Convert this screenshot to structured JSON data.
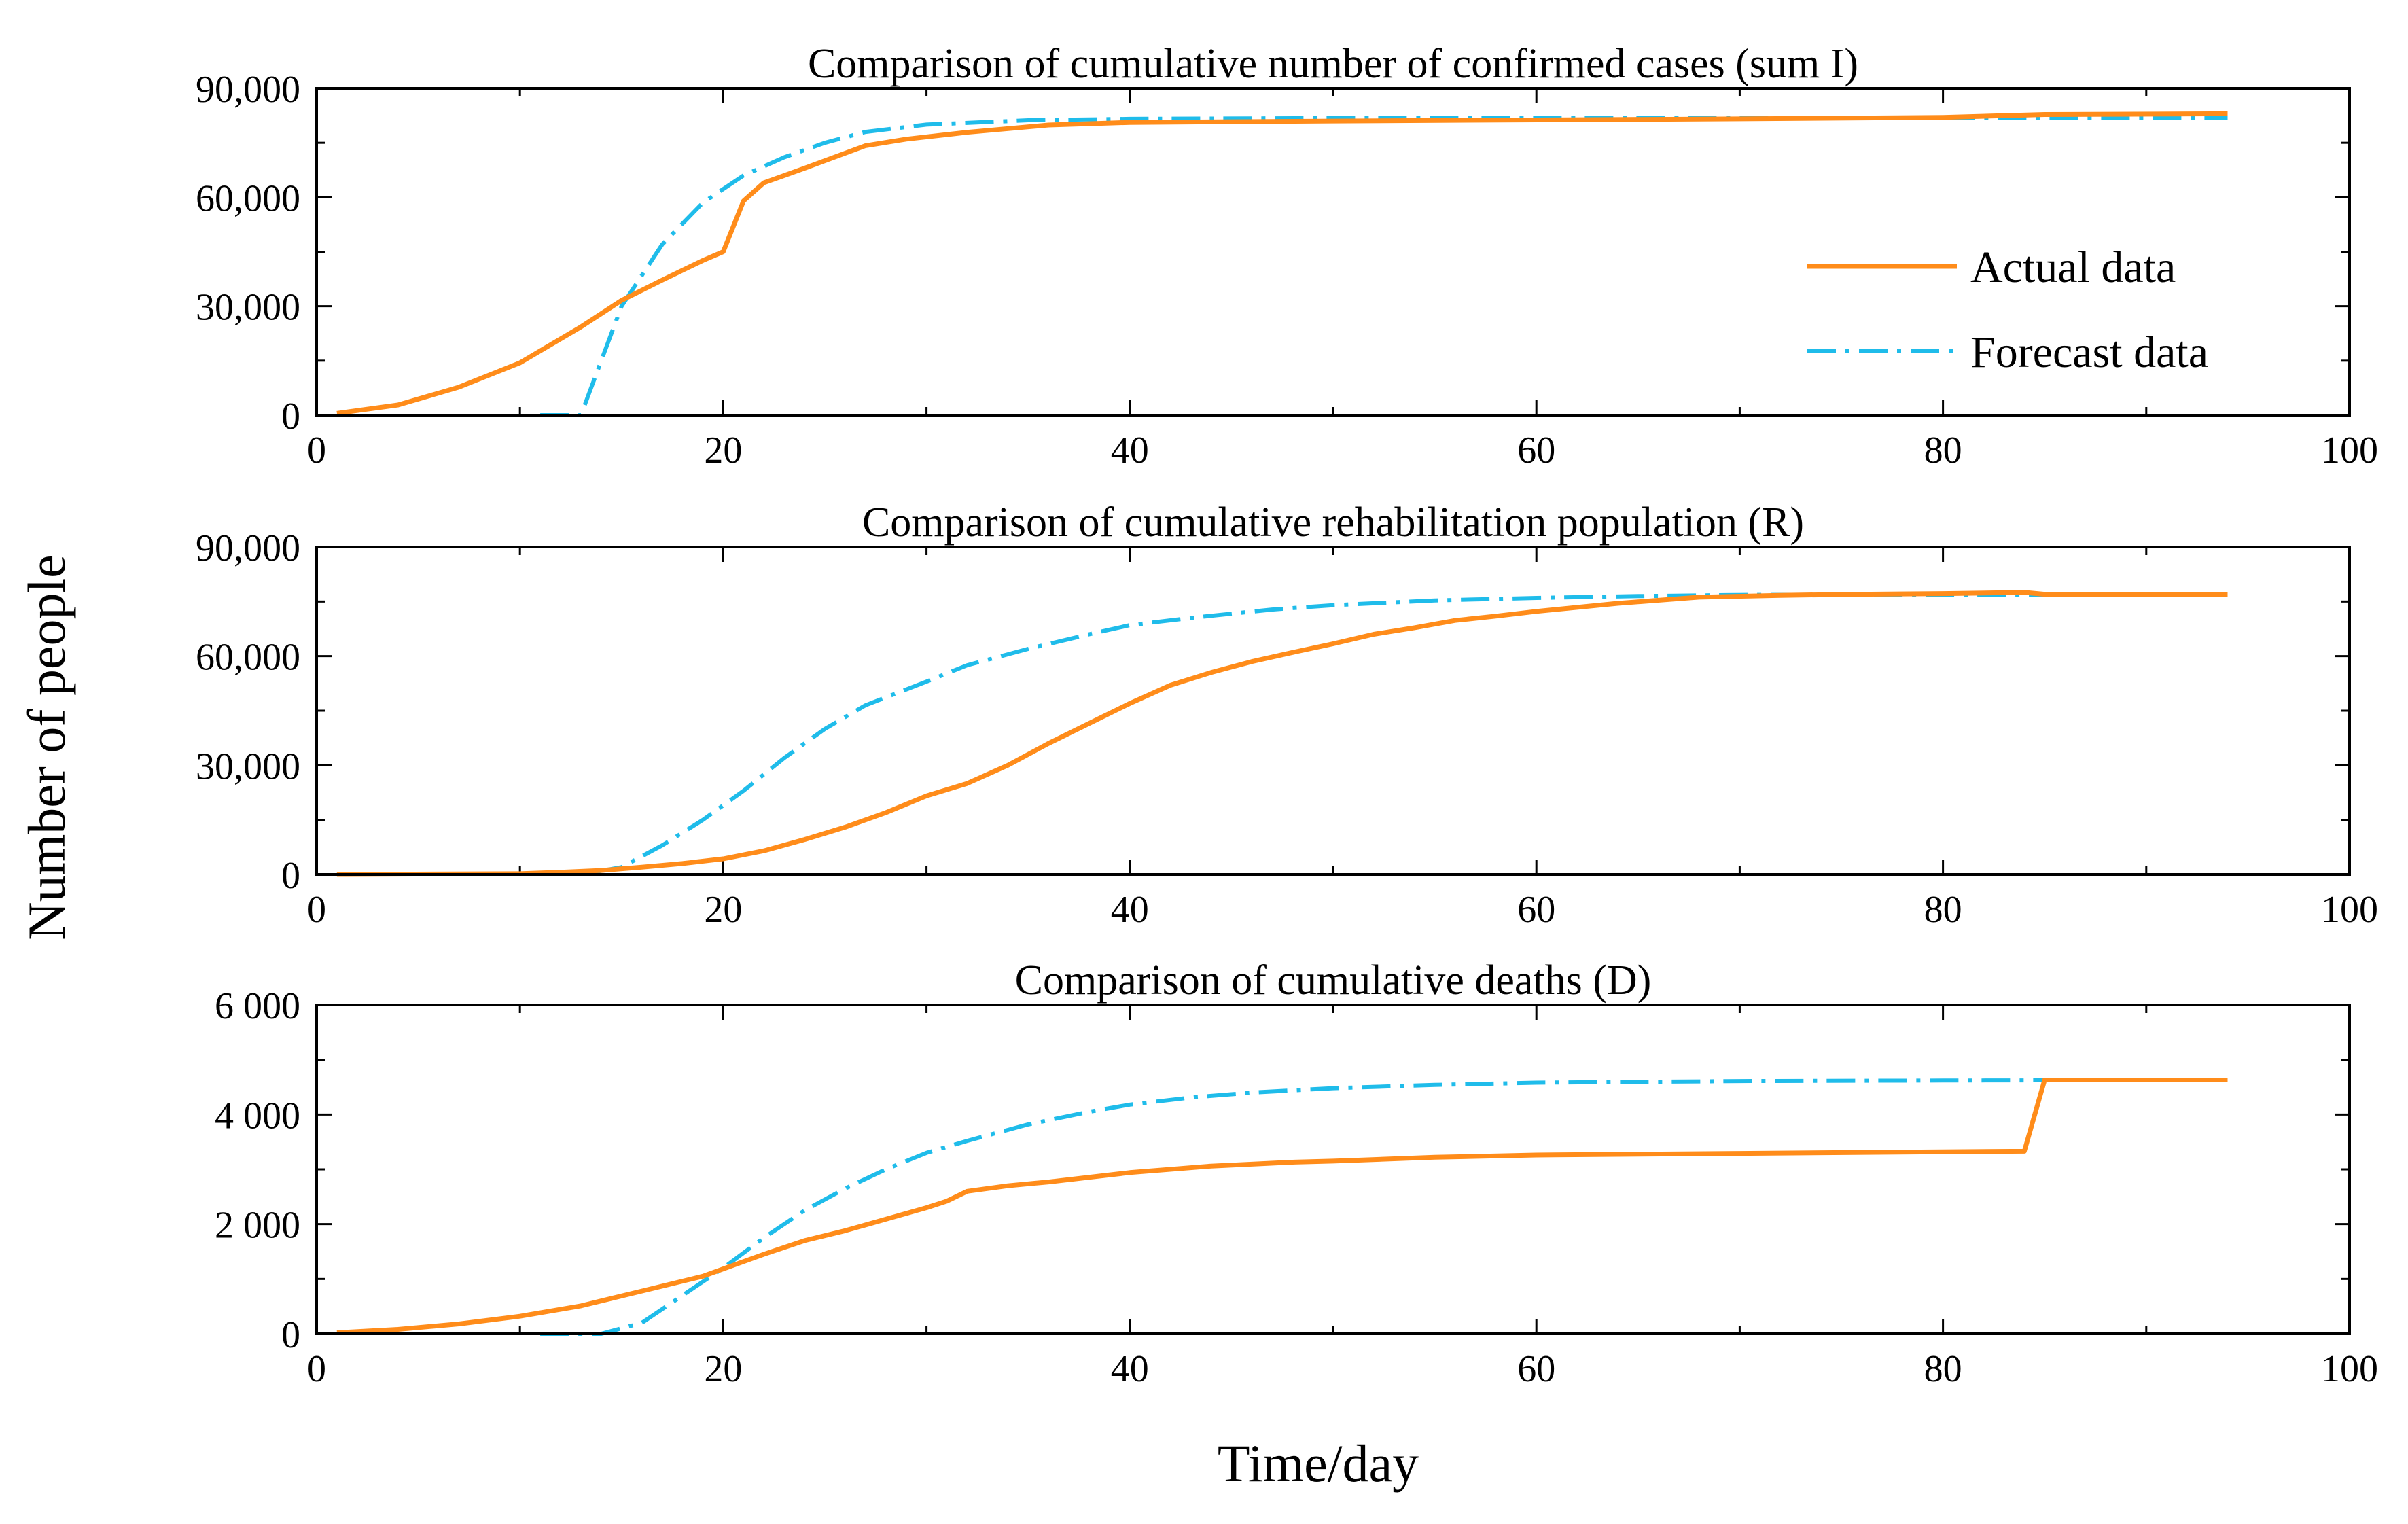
{
  "chart_data": {
    "type": "line",
    "ylabel": "Number of people",
    "xlabel": "Time/day",
    "colors": {
      "actual": "#FF8C1A",
      "forecast": "#1FBCEA"
    },
    "legend": {
      "placement": "right, inside top panel",
      "entries": [
        "Actual data",
        "Forecast data"
      ]
    },
    "panels": [
      {
        "title": "Comparison of cumulative number of confirmed cases (sum I)",
        "xlim": [
          0,
          100
        ],
        "ylim": [
          0,
          90000
        ],
        "x_ticks": [
          "0",
          "20",
          "40",
          "60",
          "80",
          "100"
        ],
        "y_ticks": [
          "0",
          "30,000",
          "60,000",
          "90,000"
        ],
        "series": [
          {
            "name": "Actual data",
            "style": "solid",
            "x": [
              1,
              4,
              7,
              10,
              13,
              15,
              17,
              19,
              20,
              21,
              22,
              24,
              27,
              29,
              32,
              36,
              40,
              50,
              60,
              70,
              80,
              85,
              94
            ],
            "y": [
              500,
              2800,
              7700,
              14400,
              24300,
              31600,
              37200,
              42600,
              45000,
              59000,
              64000,
              68000,
              74200,
              76000,
              77900,
              79900,
              80600,
              81000,
              81300,
              81600,
              82000,
              82800,
              83000
            ]
          },
          {
            "name": "Forecast data",
            "style": "dashdot",
            "x": [
              11,
              13,
              15,
              17,
              19,
              21,
              23,
              25,
              27,
              30,
              35,
              40,
              50,
              60,
              70,
              80,
              94
            ],
            "y": [
              0,
              0,
              30000,
              47000,
              58500,
              66000,
              71000,
              75000,
              78000,
              80000,
              81200,
              81600,
              81800,
              81800,
              81800,
              81800,
              81800
            ]
          }
        ]
      },
      {
        "title": "Comparison of cumulative rehabilitation population (R)",
        "xlim": [
          0,
          100
        ],
        "ylim": [
          0,
          90000
        ],
        "x_ticks": [
          "0",
          "20",
          "40",
          "60",
          "80",
          "100"
        ],
        "y_ticks": [
          "0",
          "30,000",
          "60,000",
          "90,000"
        ],
        "series": [
          {
            "name": "Actual data",
            "style": "solid",
            "x": [
              1,
              10,
              12,
              14,
              16,
              18,
              20,
              22,
              24,
              26,
              28,
              30,
              32,
              34,
              36,
              38,
              40,
              42,
              44,
              46,
              48,
              50,
              52,
              54,
              56,
              58,
              60,
              64,
              68,
              72,
              76,
              80,
              84,
              85,
              94
            ],
            "y": [
              0,
              200,
              600,
              1100,
              2000,
              3000,
              4300,
              6500,
              9600,
              13000,
              17000,
              21600,
              25000,
              30000,
              36000,
              41500,
              47000,
              52000,
              55500,
              58500,
              61000,
              63400,
              66000,
              67800,
              69800,
              71000,
              72300,
              74500,
              76200,
              76700,
              77000,
              77200,
              77500,
              77000,
              77000
            ]
          },
          {
            "name": "Forecast data",
            "style": "dashdot",
            "x": [
              1,
              10,
              13,
              15,
              17,
              19,
              21,
              23,
              25,
              27,
              30,
              32,
              35,
              38,
              40,
              43,
              47,
              50,
              55,
              60,
              65,
              70,
              80,
              94
            ],
            "y": [
              0,
              0,
              0,
              2000,
              8000,
              15000,
              23000,
              32000,
              40000,
              46500,
              53000,
              57500,
              62000,
              66000,
              68500,
              70500,
              72800,
              74000,
              75300,
              76000,
              76500,
              76800,
              76900,
              77000
            ]
          }
        ]
      },
      {
        "title": "Comparison of cumulative deaths (D)",
        "xlim": [
          0,
          100
        ],
        "ylim": [
          0,
          6000
        ],
        "x_ticks": [
          "0",
          "20",
          "40",
          "60",
          "80",
          "100"
        ],
        "y_ticks": [
          "0",
          "2 000",
          "4 000",
          "6 000"
        ],
        "series": [
          {
            "name": "Actual data",
            "style": "solid",
            "x": [
              1,
              4,
              7,
              10,
              13,
              16,
              19,
              22,
              24,
              26,
              28,
              30,
              31,
              32,
              34,
              36,
              40,
              44,
              48,
              50,
              55,
              60,
              70,
              80,
              84,
              85,
              94
            ],
            "y": [
              20,
              80,
              180,
              320,
              510,
              780,
              1050,
              1450,
              1700,
              1880,
              2090,
              2300,
              2420,
              2600,
              2700,
              2770,
              2940,
              3060,
              3130,
              3150,
              3220,
              3260,
              3290,
              3320,
              3330,
              4630,
              4630
            ]
          },
          {
            "name": "Forecast data",
            "style": "dashdot",
            "x": [
              11,
              14,
              16,
              18,
              20,
              22,
              24,
              26,
              28,
              30,
              32,
              35,
              38,
              40,
              43,
              46,
              50,
              55,
              60,
              70,
              80,
              94
            ],
            "y": [
              0,
              0,
              200,
              700,
              1200,
              1750,
              2250,
              2650,
              3000,
              3300,
              3520,
              3820,
              4050,
              4180,
              4310,
              4400,
              4480,
              4540,
              4580,
              4610,
              4620,
              4630
            ]
          }
        ]
      }
    ]
  }
}
